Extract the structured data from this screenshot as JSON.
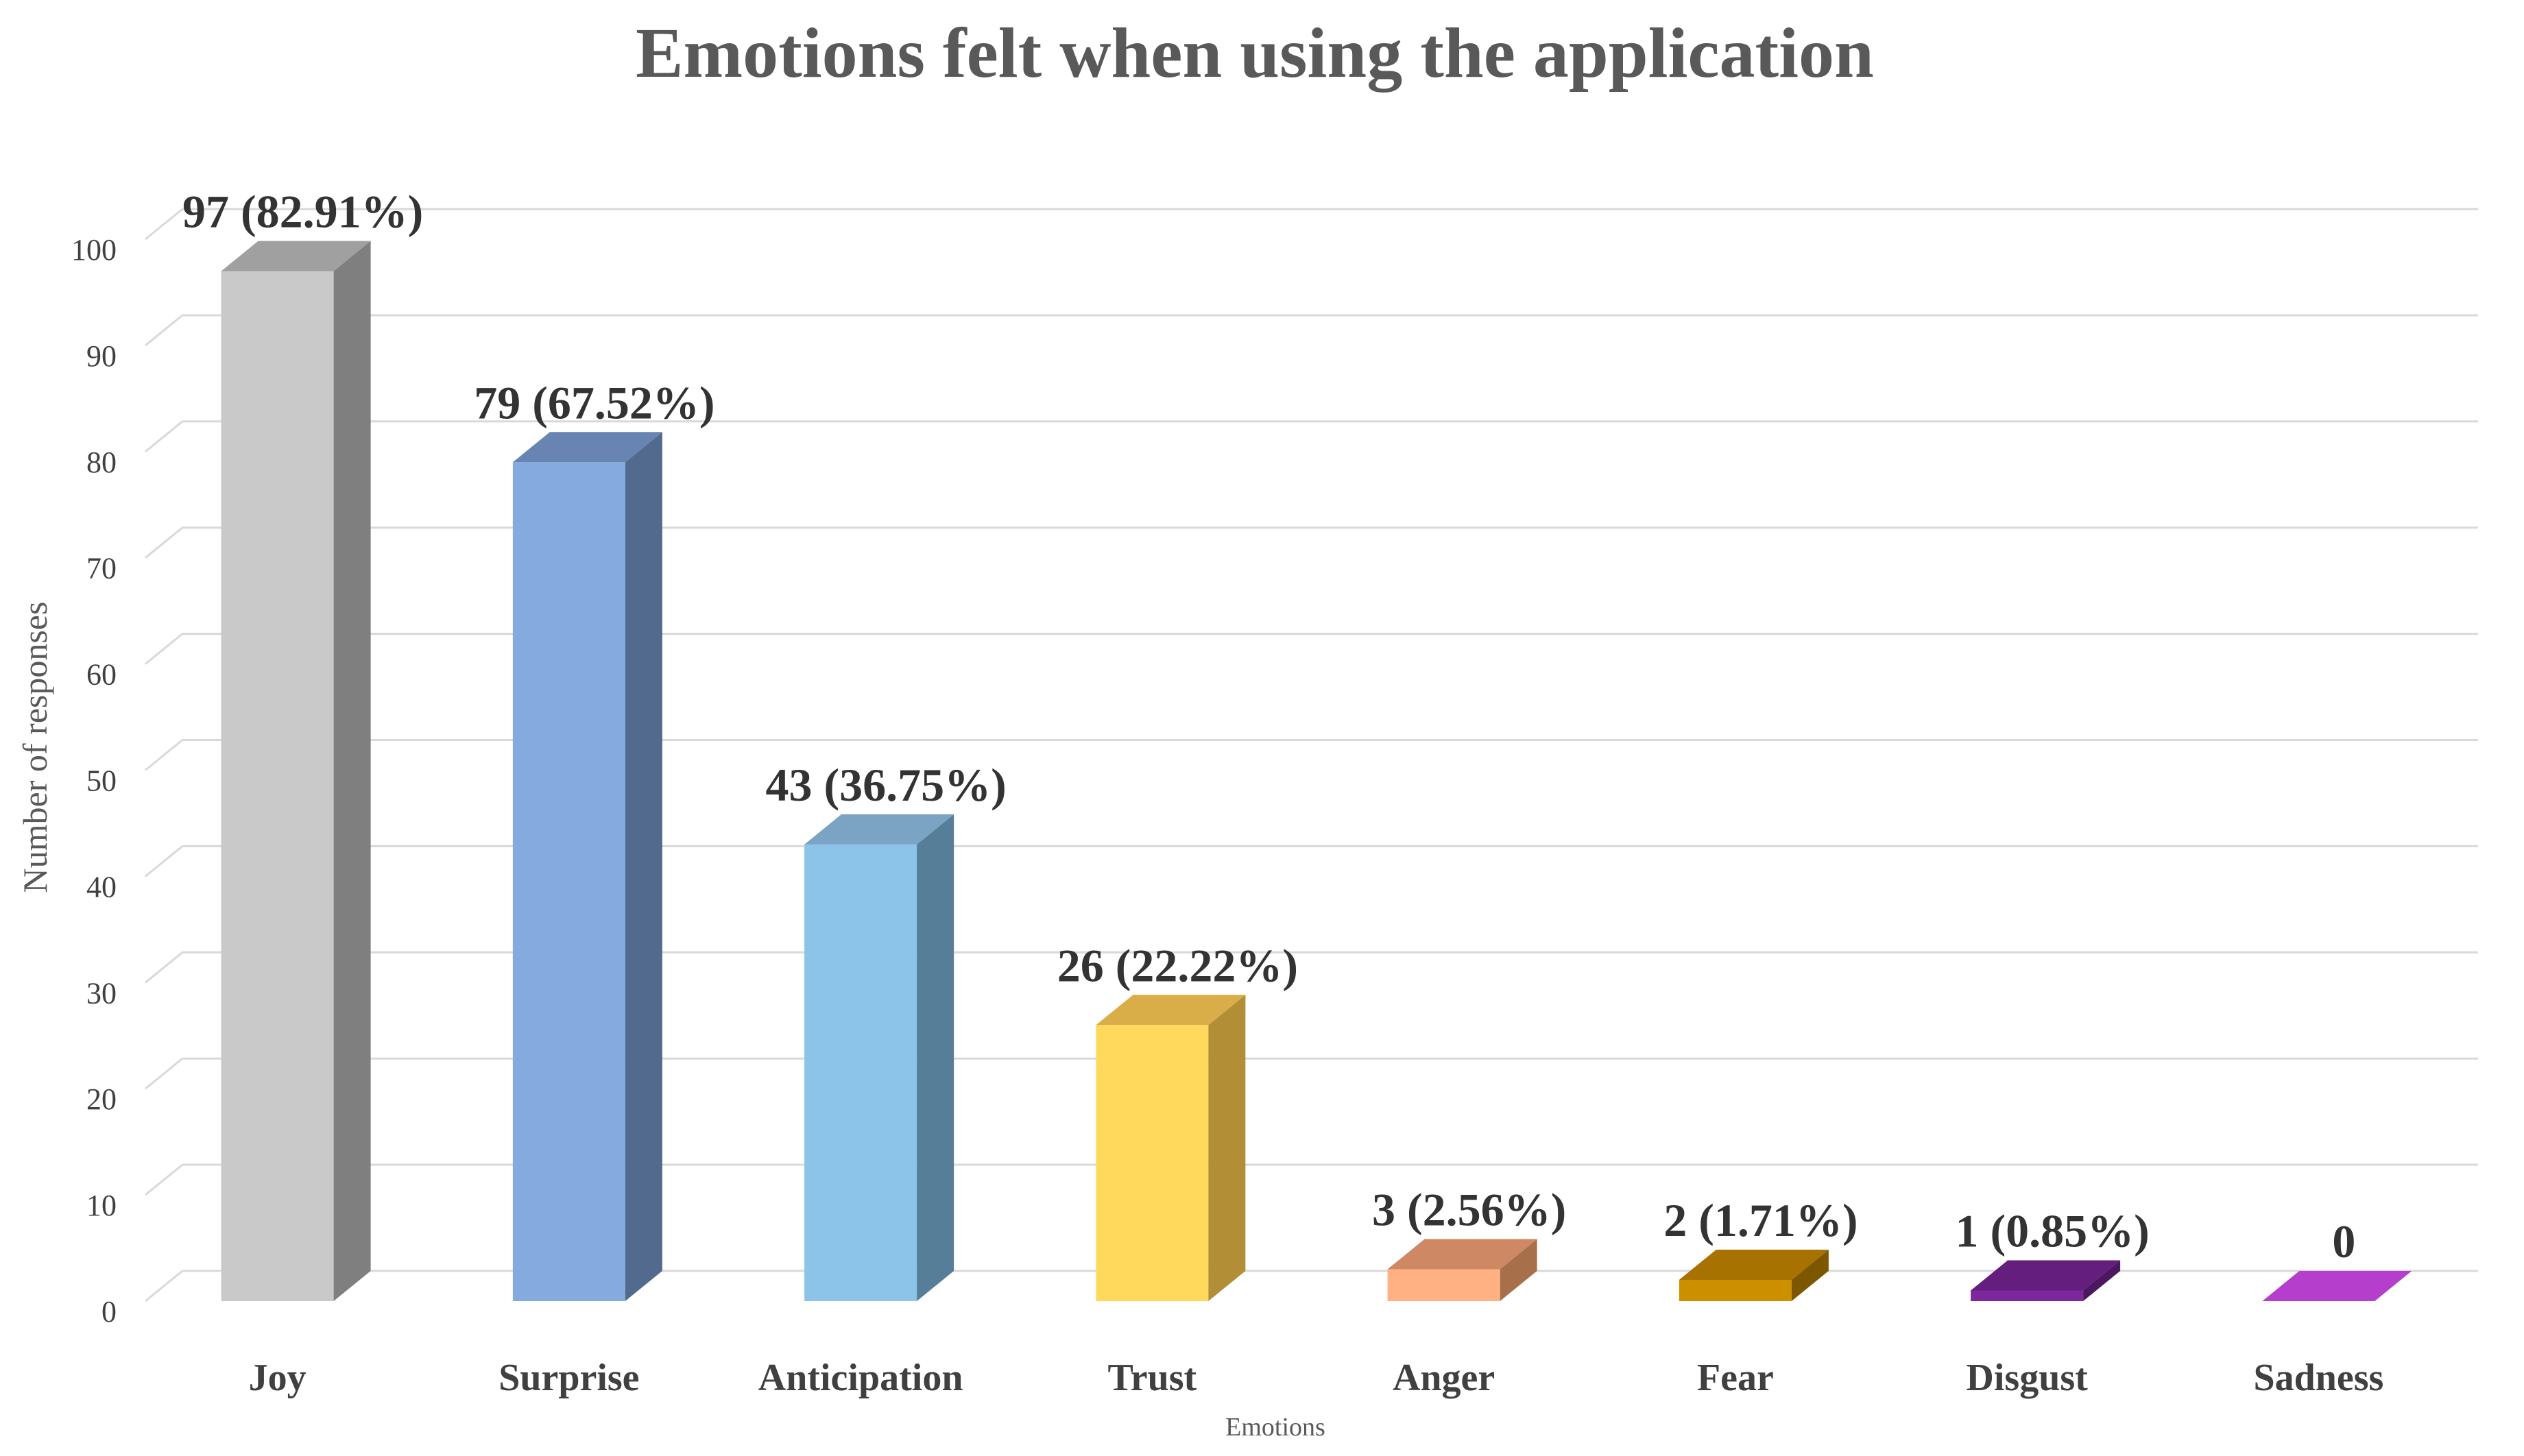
{
  "chart_data": {
    "type": "bar",
    "title": "Emotions felt when using the application",
    "xlabel": "Emotions",
    "ylabel": "Number of responses",
    "ylim": [
      0,
      100
    ],
    "yticks": [
      0,
      10,
      20,
      30,
      40,
      50,
      60,
      70,
      80,
      90,
      100
    ],
    "grid": true,
    "style": "3d-column",
    "categories": [
      "Joy",
      "Surprise",
      "Anticipation",
      "Trust",
      "Anger",
      "Fear",
      "Disgust",
      "Sadness"
    ],
    "values": [
      97,
      79,
      43,
      26,
      3,
      2,
      1,
      0
    ],
    "data_labels": [
      "97 (82.91%)",
      "79 (67.52%)",
      "43 (36.75%)",
      "26 (22.22%)",
      "3 (2.56%)",
      "2 (1.71%)",
      "1 (0.85%)",
      "0"
    ],
    "colors": {
      "front": [
        "#c9c9c9",
        "#84aadf",
        "#8cc3e9",
        "#ffd95c",
        "#ffb183",
        "#cc8f00",
        "#7c279b",
        "#a131b2"
      ],
      "side": [
        "#7f7f7f",
        "#526a8d",
        "#567e98",
        "#b28f36",
        "#a8704a",
        "#7d5700",
        "#4b175e",
        "#6c1f78"
      ],
      "top": [
        "#a0a0a0",
        "#6884b2",
        "#7aa3c4",
        "#d9ae49",
        "#ce8964",
        "#a77200",
        "#631e7e",
        "#b53ecc"
      ],
      "gridline": "#d9d9d9"
    }
  }
}
